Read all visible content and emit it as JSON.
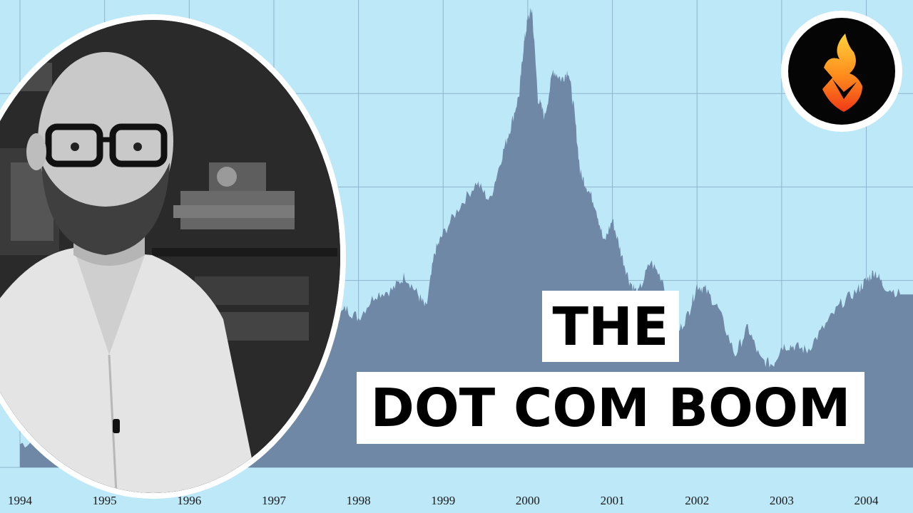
{
  "title": {
    "line1": "THE",
    "line2": "DOT COM BOOM"
  },
  "colors": {
    "background": "#bde8f8",
    "area_fill": "#6e88a6",
    "gridline": "#8fb4cc",
    "title_box": "#ffffff",
    "title_text": "#000000"
  },
  "logo": {
    "icon": "flame-icon"
  },
  "portrait": {
    "icon": "host-portrait"
  },
  "chart_data": {
    "type": "area",
    "title": "",
    "xlabel": "",
    "ylabel": "",
    "x_ticks": [
      "1994",
      "1995",
      "1996",
      "1997",
      "1998",
      "1999",
      "2000",
      "2001",
      "2002",
      "2003",
      "2004"
    ],
    "x_range": [
      1994.0,
      2004.4
    ],
    "y_range": [
      0,
      1
    ],
    "grid": true,
    "series": [
      {
        "x": [
          1994.0,
          1994.3,
          1994.6,
          1995.0,
          1995.4,
          1995.8,
          1996.2,
          1996.6,
          1997.0,
          1997.4,
          1997.7,
          1997.85,
          1998.0,
          1998.2,
          1998.4,
          1998.55,
          1998.7,
          1998.8,
          1998.9,
          1999.0,
          1999.2,
          1999.4,
          1999.55,
          1999.7,
          1999.8,
          1999.9,
          1999.95,
          2000.0,
          2000.05,
          2000.12,
          2000.2,
          2000.3,
          2000.4,
          2000.48,
          2000.55,
          2000.62,
          2000.7,
          2000.8,
          2000.9,
          2001.0,
          2001.1,
          2001.2,
          2001.3,
          2001.45,
          2001.6,
          2001.75,
          2001.9,
          2002.0,
          2002.1,
          2002.25,
          2002.45,
          2002.6,
          2002.75,
          2002.9,
          2003.0,
          2003.15,
          2003.3,
          2003.5,
          2003.7,
          2003.9,
          2004.0,
          2004.1,
          2004.2,
          2004.4
        ],
        "y": [
          0.05,
          0.06,
          0.07,
          0.08,
          0.1,
          0.13,
          0.17,
          0.2,
          0.24,
          0.27,
          0.31,
          0.34,
          0.32,
          0.37,
          0.38,
          0.41,
          0.37,
          0.34,
          0.46,
          0.5,
          0.56,
          0.61,
          0.57,
          0.67,
          0.73,
          0.8,
          0.9,
          0.96,
          0.98,
          0.79,
          0.75,
          0.85,
          0.83,
          0.85,
          0.76,
          0.63,
          0.6,
          0.56,
          0.48,
          0.53,
          0.46,
          0.4,
          0.37,
          0.44,
          0.4,
          0.28,
          0.33,
          0.39,
          0.38,
          0.34,
          0.24,
          0.3,
          0.23,
          0.22,
          0.26,
          0.26,
          0.25,
          0.3,
          0.35,
          0.38,
          0.4,
          0.42,
          0.39,
          0.37
        ]
      }
    ]
  }
}
